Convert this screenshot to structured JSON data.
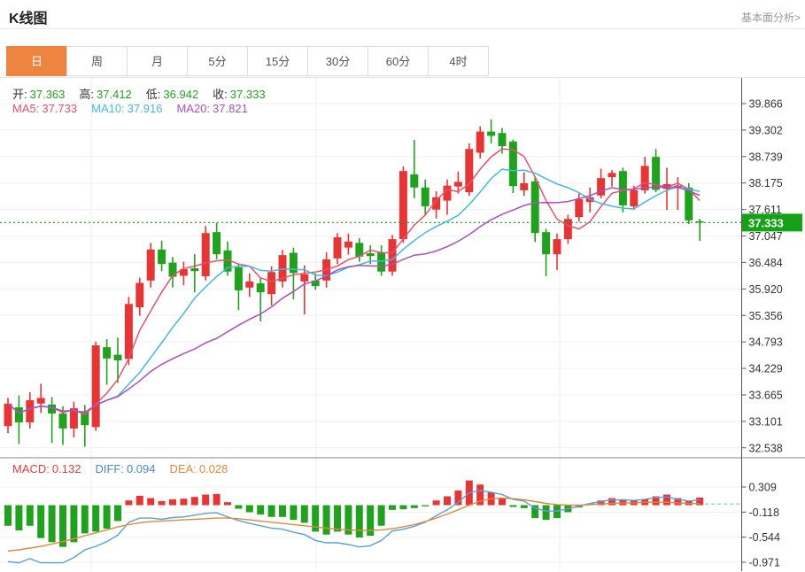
{
  "header": {
    "title": "K线图",
    "link": "基本面分析>"
  },
  "tabs": {
    "items": [
      "日",
      "周",
      "月",
      "5分",
      "15分",
      "30分",
      "60分",
      "4时"
    ],
    "active_index": 0
  },
  "legend": {
    "ohlc": [
      {
        "label": "开:",
        "value": "37.363"
      },
      {
        "label": "高:",
        "value": "37.412"
      },
      {
        "label": "低:",
        "value": "36.942"
      },
      {
        "label": "收:",
        "value": "37.333"
      }
    ],
    "ohlc_label_color": "#333333",
    "ohlc_value_color": "#21a31f",
    "ma": [
      {
        "label": "MA5:",
        "value": "37.733",
        "color": "#e8506e"
      },
      {
        "label": "MA10:",
        "value": "37.916",
        "color": "#45b8dc"
      },
      {
        "label": "MA20:",
        "value": "37.821",
        "color": "#ab4fc0"
      }
    ],
    "macd": [
      {
        "label": "MACD:",
        "value": "0.132",
        "color": "#d94040"
      },
      {
        "label": "DIFF:",
        "value": "0.094",
        "color": "#4a88d2"
      },
      {
        "label": "DEA:",
        "value": "0.028",
        "color": "#e8863c"
      }
    ]
  },
  "price_tag": {
    "value": "37.333"
  },
  "colors": {
    "up": "#e53535",
    "down": "#21a21f",
    "ma5": "#e8506e",
    "ma10": "#45b8dc",
    "ma20": "#ab4fc0",
    "diff_line": "#58a0d8",
    "dea_line": "#e2883a",
    "grid": "#f0f0f0",
    "vgrid": "#ececec",
    "axis": "#555555",
    "tick_text": "#333333",
    "dotted_line": "#2ba02b",
    "tag_bg": "#16a216",
    "tag_text": "#ffffff",
    "tab_active": "#ed8540",
    "dashed_tail": "#9fc8e8"
  },
  "chart_data": {
    "type": "candlestick",
    "title": "K线图 日K (daily candles with MA5/MA10/MA20 and MACD sub-chart)",
    "main": {
      "y_ticks": [
        39.866,
        39.302,
        38.739,
        38.175,
        37.611,
        37.047,
        36.484,
        35.92,
        35.356,
        34.793,
        34.229,
        33.665,
        33.101,
        32.538
      ],
      "ylim": [
        32.33,
        40.41
      ],
      "dotted_line_value": 37.333,
      "ma_periods": [
        5,
        10,
        20
      ],
      "candles_ohlc": [
        [
          33.0,
          33.6,
          32.85,
          33.48
        ],
        [
          33.4,
          33.65,
          32.62,
          33.08
        ],
        [
          33.08,
          33.72,
          32.95,
          33.55
        ],
        [
          33.48,
          33.9,
          33.28,
          33.6
        ],
        [
          33.46,
          33.62,
          32.64,
          33.27
        ],
        [
          33.27,
          33.42,
          32.6,
          32.95
        ],
        [
          32.95,
          33.52,
          32.76,
          33.38
        ],
        [
          33.32,
          33.45,
          32.56,
          33.02
        ],
        [
          32.98,
          34.8,
          32.9,
          34.72
        ],
        [
          34.68,
          34.85,
          33.88,
          34.44
        ],
        [
          34.52,
          34.88,
          33.92,
          34.4
        ],
        [
          34.43,
          35.75,
          34.3,
          35.6
        ],
        [
          35.53,
          36.16,
          35.35,
          36.05
        ],
        [
          36.1,
          36.9,
          35.95,
          36.76
        ],
        [
          36.76,
          36.95,
          36.3,
          36.45
        ],
        [
          36.48,
          36.6,
          35.95,
          36.18
        ],
        [
          36.2,
          36.5,
          36.0,
          36.34
        ],
        [
          36.36,
          36.66,
          35.85,
          36.3
        ],
        [
          36.19,
          37.26,
          36.1,
          37.11
        ],
        [
          37.13,
          37.33,
          36.55,
          36.66
        ],
        [
          36.74,
          36.93,
          36.2,
          36.29
        ],
        [
          36.38,
          36.45,
          35.47,
          35.89
        ],
        [
          35.95,
          36.25,
          35.75,
          36.08
        ],
        [
          36.04,
          36.15,
          35.23,
          35.85
        ],
        [
          35.81,
          36.4,
          35.57,
          36.28
        ],
        [
          36.08,
          36.75,
          35.95,
          36.64
        ],
        [
          36.69,
          36.8,
          35.7,
          36.26
        ],
        [
          36.08,
          36.42,
          35.38,
          36.23
        ],
        [
          36.1,
          36.25,
          35.9,
          35.98
        ],
        [
          36.1,
          36.7,
          35.95,
          36.55
        ],
        [
          36.57,
          37.11,
          36.45,
          37.02
        ],
        [
          36.8,
          37.1,
          36.65,
          36.93
        ],
        [
          36.9,
          37.0,
          36.5,
          36.61
        ],
        [
          36.68,
          36.85,
          36.45,
          36.62
        ],
        [
          36.7,
          36.85,
          36.2,
          36.29
        ],
        [
          36.29,
          37.07,
          36.2,
          36.98
        ],
        [
          36.98,
          38.53,
          36.9,
          38.43
        ],
        [
          38.36,
          39.09,
          37.85,
          38.08
        ],
        [
          38.08,
          38.25,
          37.49,
          37.68
        ],
        [
          37.61,
          38.0,
          37.42,
          37.87
        ],
        [
          37.8,
          38.25,
          37.5,
          38.12
        ],
        [
          38.1,
          38.42,
          37.95,
          38.2
        ],
        [
          37.98,
          39.02,
          37.9,
          38.9
        ],
        [
          38.82,
          39.38,
          38.7,
          39.27
        ],
        [
          39.27,
          39.53,
          39.02,
          39.18
        ],
        [
          39.24,
          39.35,
          38.8,
          38.96
        ],
        [
          39.06,
          39.1,
          37.96,
          38.11
        ],
        [
          38.02,
          38.4,
          37.9,
          38.17
        ],
        [
          38.21,
          38.3,
          36.92,
          37.11
        ],
        [
          37.13,
          37.2,
          36.19,
          36.66
        ],
        [
          36.66,
          37.1,
          36.32,
          36.98
        ],
        [
          36.98,
          37.5,
          36.88,
          37.41
        ],
        [
          37.45,
          37.95,
          37.35,
          37.83
        ],
        [
          37.77,
          38.08,
          37.55,
          37.87
        ],
        [
          37.91,
          38.48,
          37.85,
          38.28
        ],
        [
          38.3,
          38.45,
          38.1,
          38.39
        ],
        [
          38.43,
          38.5,
          37.55,
          37.7
        ],
        [
          37.68,
          38.12,
          37.6,
          38.02
        ],
        [
          38.02,
          38.73,
          37.95,
          38.54
        ],
        [
          38.73,
          38.9,
          37.98,
          38.03
        ],
        [
          38.05,
          38.5,
          37.6,
          38.15
        ],
        [
          38.07,
          38.3,
          37.6,
          38.12
        ],
        [
          38.08,
          38.17,
          37.3,
          37.38
        ],
        [
          37.363,
          37.412,
          36.942,
          37.333
        ]
      ]
    },
    "macd": {
      "y_ticks": [
        0.309,
        -0.118,
        -0.544,
        -0.971
      ],
      "ylim": [
        -1.15,
        0.58
      ],
      "hist": [
        -0.35,
        -0.43,
        -0.35,
        -0.56,
        -0.63,
        -0.71,
        -0.63,
        -0.48,
        -0.45,
        -0.4,
        -0.27,
        0.08,
        0.16,
        0.12,
        0.07,
        0.1,
        0.11,
        0.14,
        0.18,
        0.19,
        0.05,
        -0.06,
        -0.12,
        -0.16,
        -0.2,
        -0.2,
        -0.25,
        -0.3,
        -0.45,
        -0.5,
        -0.45,
        -0.5,
        -0.55,
        -0.52,
        -0.35,
        -0.08,
        -0.07,
        -0.05,
        -0.02,
        0.08,
        0.15,
        0.25,
        0.42,
        0.35,
        0.22,
        0.12,
        -0.03,
        -0.05,
        -0.22,
        -0.25,
        -0.22,
        -0.12,
        -0.04,
        0.03,
        0.08,
        0.12,
        0.1,
        0.08,
        0.1,
        0.15,
        0.18,
        0.12,
        0.08,
        0.13
      ],
      "diff": [
        -0.96,
        -0.98,
        -0.91,
        -0.98,
        -0.98,
        -0.98,
        -0.89,
        -0.76,
        -0.7,
        -0.62,
        -0.51,
        -0.29,
        -0.22,
        -0.22,
        -0.24,
        -0.21,
        -0.2,
        -0.17,
        -0.14,
        -0.13,
        -0.2,
        -0.26,
        -0.31,
        -0.35,
        -0.39,
        -0.41,
        -0.46,
        -0.5,
        -0.6,
        -0.64,
        -0.64,
        -0.67,
        -0.71,
        -0.69,
        -0.6,
        -0.44,
        -0.41,
        -0.36,
        -0.29,
        -0.18,
        -0.08,
        0.05,
        0.21,
        0.25,
        0.22,
        0.18,
        0.1,
        0.07,
        -0.05,
        -0.1,
        -0.1,
        -0.06,
        -0.02,
        0.03,
        0.06,
        0.09,
        0.09,
        0.08,
        0.1,
        0.13,
        0.14,
        0.1,
        0.07,
        0.094
      ],
      "dea": [
        -0.78,
        -0.76,
        -0.73,
        -0.7,
        -0.66,
        -0.62,
        -0.57,
        -0.52,
        -0.47,
        -0.42,
        -0.37,
        -0.33,
        -0.3,
        -0.28,
        -0.27,
        -0.26,
        -0.25,
        -0.24,
        -0.23,
        -0.22,
        -0.22,
        -0.23,
        -0.25,
        -0.27,
        -0.29,
        -0.31,
        -0.33,
        -0.35,
        -0.37,
        -0.39,
        -0.41,
        -0.42,
        -0.43,
        -0.43,
        -0.42,
        -0.4,
        -0.37,
        -0.33,
        -0.28,
        -0.22,
        -0.15,
        -0.08,
        0.0,
        0.07,
        0.11,
        0.12,
        0.11,
        0.09,
        0.06,
        0.03,
        0.01,
        0.0,
        0.0,
        0.01,
        0.02,
        0.03,
        0.04,
        0.04,
        0.05,
        0.05,
        0.05,
        0.04,
        0.03,
        0.028
      ],
      "dashed_tail_value": 0.02
    }
  }
}
